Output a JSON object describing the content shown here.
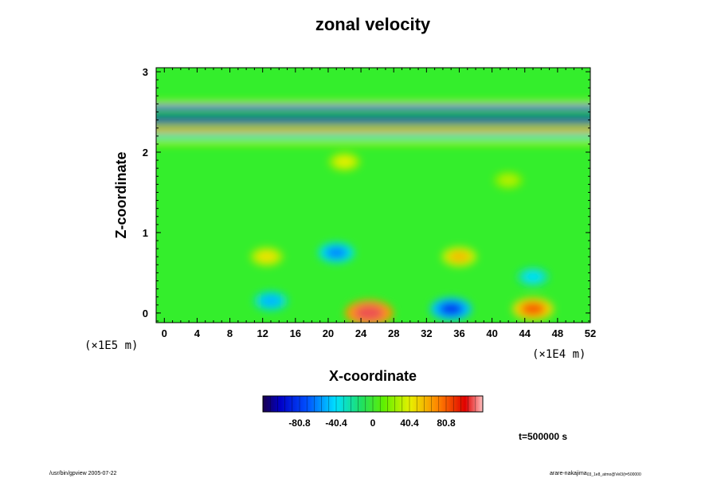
{
  "chart_data": {
    "type": "heatmap",
    "title": "zonal velocity",
    "xlabel": "X-coordinate",
    "ylabel": "Z-coordinate",
    "x_scale": "(×1E4 m)",
    "y_scale": "(×1E5 m)",
    "xlim": [
      -1,
      52
    ],
    "ylim": [
      -0.12,
      3.05
    ],
    "x_ticks": [
      "0",
      "4",
      "8",
      "12",
      "16",
      "20",
      "24",
      "28",
      "32",
      "36",
      "40",
      "44",
      "48",
      "52"
    ],
    "y_ticks": [
      "0",
      "1",
      "2",
      "3"
    ],
    "colorbar": {
      "range": [
        -121.2,
        121.2
      ],
      "tick_labels": [
        "-80.8",
        "-40.4",
        "0",
        "40.4",
        "80.8"
      ],
      "tick_values": [
        -80.8,
        -40.4,
        0,
        40.4,
        80.8
      ]
    },
    "features": [
      {
        "x": 25,
        "z": 0.0,
        "value": 110
      },
      {
        "x": 35,
        "z": 0.05,
        "value": -80
      },
      {
        "x": 45,
        "z": 0.05,
        "value": 80
      },
      {
        "x": 13,
        "z": 0.15,
        "value": -50
      },
      {
        "x": 12.5,
        "z": 0.7,
        "value": 45
      },
      {
        "x": 36,
        "z": 0.7,
        "value": 55
      },
      {
        "x": 21,
        "z": 0.75,
        "value": -60
      },
      {
        "x": 45,
        "z": 0.45,
        "value": -40
      },
      {
        "x": 22,
        "z": 1.88,
        "value": 40
      },
      {
        "x": 42,
        "z": 1.65,
        "value": 30
      }
    ],
    "bands": [
      {
        "z": 2.6,
        "value": 35
      },
      {
        "z": 2.55,
        "value": -85
      },
      {
        "z": 2.4,
        "value": -90
      },
      {
        "z": 2.28,
        "value": 65
      },
      {
        "z": 2.2,
        "value": -30
      },
      {
        "z": 2.12,
        "value": 25
      }
    ]
  },
  "time_label": "t=500000 s",
  "footer_left": "/usr/bin/gpview 2005-07-22",
  "footer_right": "arare-nakajima",
  "footer_right_small": "03_1e8_atmo@Vel3(t=500000"
}
